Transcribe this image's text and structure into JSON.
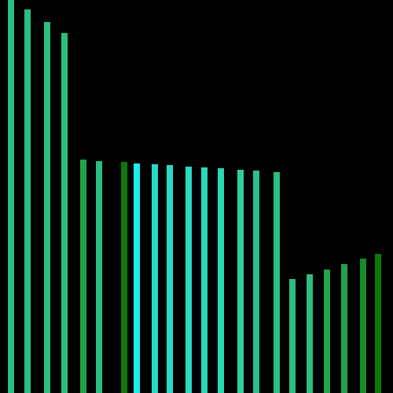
{
  "background_color": "#000000",
  "bars": [
    {
      "level": 1.0,
      "color": "#2bbf7f"
    },
    {
      "level": 0.976,
      "color": "#2bbf7f"
    },
    {
      "level": 0.944,
      "color": "#2bbf7f"
    },
    {
      "level": 0.916,
      "color": "#2bbf7f"
    },
    {
      "level": 0.594,
      "color": "#22a34a"
    },
    {
      "level": 0.59,
      "color": "#2bbf7f"
    },
    {
      "level": 0.588,
      "color": "#0a7a0a"
    },
    {
      "level": 0.584,
      "color": "#1af0e8"
    },
    {
      "level": 0.582,
      "color": "#2ad9c8"
    },
    {
      "level": 0.58,
      "color": "#2ad9c8"
    },
    {
      "level": 0.576,
      "color": "#2ad9c0"
    },
    {
      "level": 0.574,
      "color": "#2ad9b8"
    },
    {
      "level": 0.572,
      "color": "#2ad9b0"
    },
    {
      "level": 0.568,
      "color": "#2bcfa0"
    },
    {
      "level": 0.566,
      "color": "#2bbf90"
    },
    {
      "level": 0.562,
      "color": "#2bbf80"
    },
    {
      "level": 0.29,
      "color": "#2bbf7f"
    },
    {
      "level": 0.302,
      "color": "#2bbf7f"
    },
    {
      "level": 0.314,
      "color": "#22a34a"
    },
    {
      "level": 0.328,
      "color": "#22a34a"
    },
    {
      "level": 0.342,
      "color": "#178a2a"
    },
    {
      "level": 0.354,
      "color": "#0a7a0a"
    }
  ]
}
